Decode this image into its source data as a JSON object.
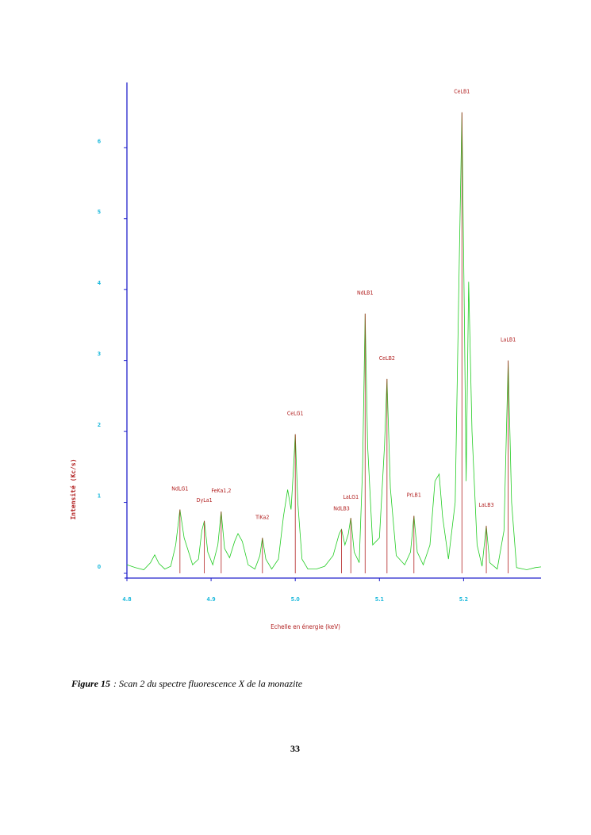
{
  "chart_data": {
    "type": "line",
    "xlabel": "Echelle en énergie (keV)",
    "ylabel": "Intensité (Kc/s)",
    "xlim": [
      4.8,
      5.292
    ],
    "ylim": [
      0,
      6.92
    ],
    "xticks": [
      4.8,
      4.9,
      {
        "value": 5.0,
        "label": "5.0"
      },
      5.1,
      5.2
    ],
    "yticks": [
      0,
      1,
      2,
      3,
      4,
      5,
      6
    ],
    "series": [
      {
        "color": "#22cc22",
        "x": [
          4.8,
          4.81,
          4.82,
          4.828,
          4.833,
          4.838,
          4.845,
          4.852,
          4.858,
          4.863,
          4.868,
          4.872,
          4.878,
          4.885,
          4.889,
          4.892,
          4.896,
          4.902,
          4.908,
          4.912,
          4.916,
          4.922,
          4.928,
          4.932,
          4.937,
          4.944,
          4.952,
          4.958,
          4.961,
          4.965,
          4.972,
          4.98,
          4.986,
          4.991,
          4.995,
          4.998,
          5.0,
          5.003,
          5.008,
          5.015,
          5.025,
          5.035,
          5.045,
          5.052,
          5.055,
          5.059,
          5.063,
          5.066,
          5.07,
          5.076,
          5.08,
          5.083,
          5.086,
          5.092,
          5.1,
          5.106,
          5.109,
          5.113,
          5.12,
          5.13,
          5.137,
          5.141,
          5.145,
          5.152,
          5.16,
          5.166,
          5.171,
          5.175,
          5.182,
          5.19,
          5.195,
          5.198,
          5.201,
          5.203,
          5.206,
          5.21,
          5.216,
          5.222,
          5.227,
          5.231,
          5.24,
          5.248,
          5.253,
          5.257,
          5.263,
          5.275,
          5.285,
          5.292
        ],
        "values": [
          0.12,
          0.08,
          0.05,
          0.15,
          0.26,
          0.14,
          0.06,
          0.1,
          0.4,
          0.9,
          0.5,
          0.35,
          0.12,
          0.2,
          0.6,
          0.74,
          0.3,
          0.12,
          0.4,
          0.87,
          0.35,
          0.22,
          0.45,
          0.56,
          0.45,
          0.12,
          0.06,
          0.25,
          0.5,
          0.2,
          0.06,
          0.2,
          0.8,
          1.18,
          0.9,
          1.5,
          1.96,
          1.0,
          0.2,
          0.06,
          0.06,
          0.1,
          0.25,
          0.55,
          0.62,
          0.4,
          0.55,
          0.78,
          0.3,
          0.15,
          1.5,
          3.66,
          1.8,
          0.4,
          0.5,
          1.8,
          2.74,
          1.2,
          0.25,
          0.12,
          0.3,
          0.81,
          0.3,
          0.12,
          0.4,
          1.3,
          1.4,
          0.8,
          0.2,
          1.0,
          4.5,
          6.5,
          3.5,
          1.3,
          4.11,
          2.0,
          0.4,
          0.1,
          0.67,
          0.15,
          0.06,
          0.6,
          3.0,
          1.0,
          0.08,
          0.05,
          0.08,
          0.09
        ]
      }
    ],
    "lines": {
      "color": "#b22222",
      "names": [
        "NdLG1",
        "DyLa1",
        "FeKa1,2",
        "TiKa2",
        "CeLG1",
        "NdLB3",
        "LaLG1",
        "NdLB1",
        "CeLB2",
        "PrLB1",
        "CeLB1",
        "LaLB3",
        "LaLB1"
      ],
      "x": [
        4.863,
        4.892,
        4.912,
        4.961,
        5.0,
        5.055,
        5.066,
        5.083,
        5.109,
        5.141,
        5.198,
        5.227,
        5.253
      ],
      "values": [
        0.9,
        0.74,
        0.87,
        0.5,
        1.96,
        0.62,
        0.78,
        3.66,
        2.74,
        0.81,
        6.5,
        0.67,
        3.0
      ]
    }
  },
  "caption": {
    "label": "Figure 15",
    "text": ": Scan 2 du spectre fluorescence X de la monazite"
  },
  "page_number": "33"
}
